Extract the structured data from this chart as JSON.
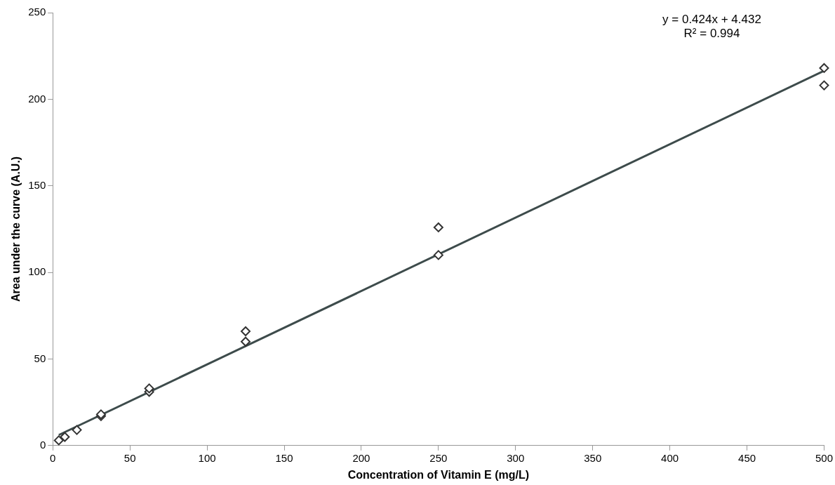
{
  "chart_data": {
    "type": "scatter",
    "xlabel": "Concentration of Vitamin E (mg/L)",
    "ylabel": "Area under the curve (A.U.)",
    "series": [
      {
        "marker": "diamond",
        "color": "#333333",
        "x": [
          3.9,
          7.8,
          15.6,
          31.25,
          31.25,
          62.5,
          62.5,
          125,
          125,
          250,
          250,
          500,
          500
        ],
        "values": [
          3,
          5,
          9,
          17,
          18,
          31,
          33,
          60,
          66,
          110,
          126,
          208,
          218
        ]
      },
      {
        "type": "line",
        "marker": "none",
        "color": "#3d4b4b",
        "x": [
          3.9,
          500
        ],
        "values": [
          6.1,
          216.4
        ]
      }
    ],
    "annotations": [
      "y = 0.424x + 4.432",
      "R² = 0.994"
    ],
    "xlim": [
      0,
      500
    ],
    "xticks": [
      0,
      50,
      100,
      150,
      200,
      250,
      300,
      350,
      400,
      450,
      500
    ],
    "ylim": [
      0,
      250
    ],
    "yticks": [
      0,
      50,
      100,
      150,
      200,
      250
    ],
    "grid": false,
    "legend": false,
    "line_style": "solid"
  }
}
